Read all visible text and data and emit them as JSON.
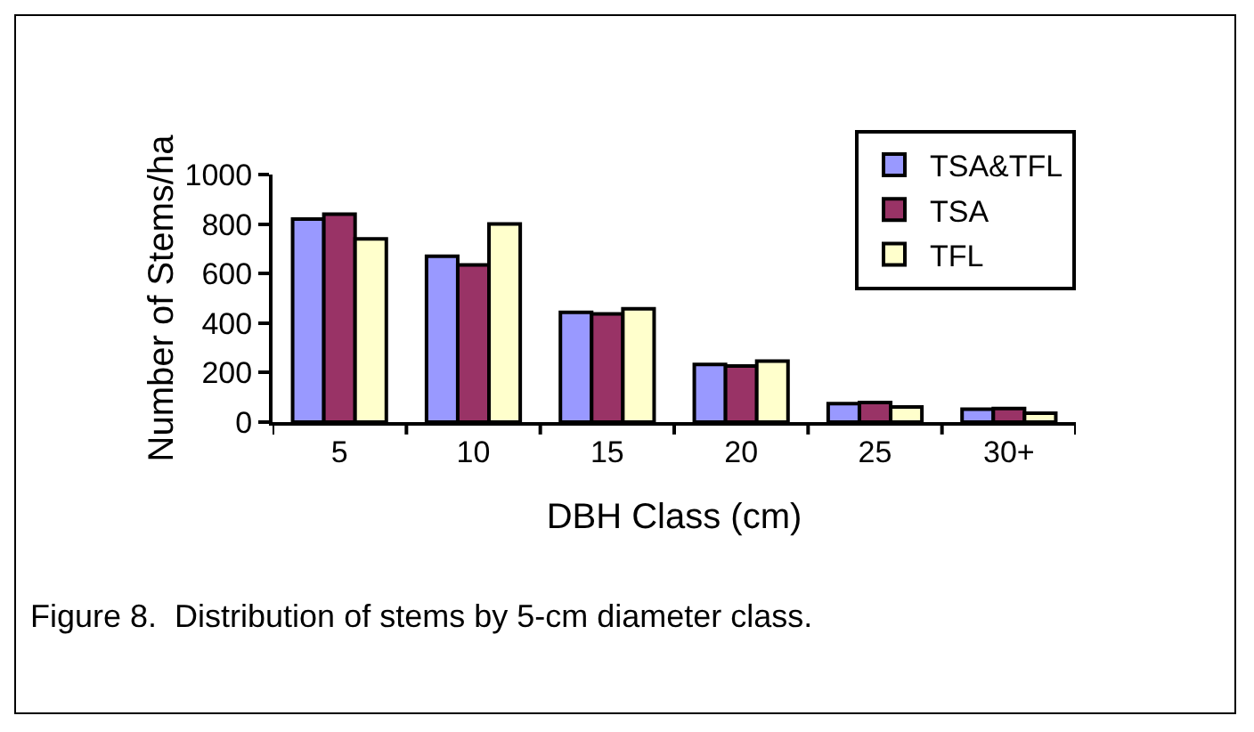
{
  "chart_data": {
    "type": "bar",
    "xlabel": "DBH Class (cm)",
    "ylabel": "Number of Stems/ha",
    "categories": [
      "5",
      "10",
      "15",
      "20",
      "25",
      "30+"
    ],
    "series": [
      {
        "name": "TSA&TFL",
        "color": "#9999ff",
        "values": [
          820,
          670,
          443,
          233,
          75,
          52
        ]
      },
      {
        "name": "TSA",
        "color": "#993366",
        "values": [
          840,
          635,
          437,
          227,
          79,
          55
        ]
      },
      {
        "name": "TFL",
        "color": "#ffffcc",
        "values": [
          740,
          800,
          458,
          246,
          61,
          36
        ]
      }
    ],
    "ylim": [
      0,
      1000
    ],
    "yticks": [
      0,
      200,
      400,
      600,
      800,
      1000
    ],
    "grid": false,
    "legend": "top right",
    "annotations": [
      "Figure 8.  Distribution of stems by 5-cm diameter class."
    ]
  }
}
